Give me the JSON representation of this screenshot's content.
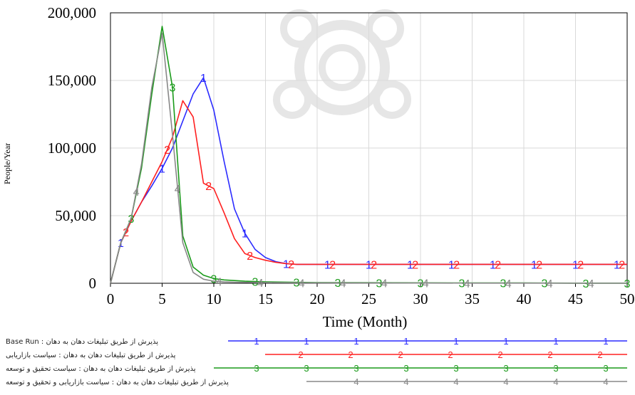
{
  "chart_data": {
    "type": "line",
    "title": "",
    "xlabel": "Time (Month)",
    "ylabel": "People/Year",
    "xlim": [
      0,
      50
    ],
    "ylim": [
      0,
      200000
    ],
    "x_ticks": [
      "0",
      "5",
      "10",
      "15",
      "20",
      "25",
      "30",
      "35",
      "40",
      "45",
      "50"
    ],
    "y_ticks": [
      "0",
      "50,000",
      "100,000",
      "150,000",
      "200,000"
    ],
    "grid": true,
    "legend_position": "bottom",
    "series": [
      {
        "marker": "1",
        "color": "#2b2bff",
        "legend_label": "پذیرش از طریق تبلیغات دهان به دهان : Base Run",
        "points": [
          [
            0,
            0
          ],
          [
            1,
            30000
          ],
          [
            2,
            46000
          ],
          [
            3,
            60000
          ],
          [
            4,
            72000
          ],
          [
            5,
            85000
          ],
          [
            6,
            100000
          ],
          [
            7,
            120000
          ],
          [
            8,
            140000
          ],
          [
            9,
            152000
          ],
          [
            10,
            128000
          ],
          [
            11,
            90000
          ],
          [
            12,
            55000
          ],
          [
            13,
            37000
          ],
          [
            14,
            25000
          ],
          [
            15,
            19000
          ],
          [
            16,
            16000
          ],
          [
            17,
            14500
          ],
          [
            18,
            14000
          ],
          [
            20,
            14000
          ],
          [
            25,
            14000
          ],
          [
            30,
            14000
          ],
          [
            35,
            14000
          ],
          [
            40,
            14000
          ],
          [
            45,
            14000
          ],
          [
            50,
            14000
          ]
        ]
      },
      {
        "marker": "2",
        "color": "#ff2020",
        "legend_label": "پذیرش از طریق تبلیغات دهان به دهان : سیاست بازاریابی",
        "points": [
          [
            0,
            0
          ],
          [
            1,
            30000
          ],
          [
            2,
            46000
          ],
          [
            3,
            60000
          ],
          [
            4,
            75000
          ],
          [
            5,
            90000
          ],
          [
            6,
            108000
          ],
          [
            7,
            135000
          ],
          [
            8,
            123000
          ],
          [
            9,
            74000
          ],
          [
            10,
            70000
          ],
          [
            11,
            52000
          ],
          [
            12,
            33000
          ],
          [
            13,
            22000
          ],
          [
            14,
            19000
          ],
          [
            15,
            17000
          ],
          [
            16,
            15500
          ],
          [
            17,
            14500
          ],
          [
            18,
            14000
          ],
          [
            20,
            14000
          ],
          [
            25,
            14000
          ],
          [
            30,
            14000
          ],
          [
            35,
            14000
          ],
          [
            40,
            14000
          ],
          [
            45,
            14000
          ],
          [
            50,
            14000
          ]
        ]
      },
      {
        "marker": "3",
        "color": "#1a9a1a",
        "legend_label": "پذیرش از طریق تبلیغات دهان به دهان : سیاست تحقیق و توسعه",
        "points": [
          [
            0,
            0
          ],
          [
            1,
            30000
          ],
          [
            2,
            48000
          ],
          [
            3,
            85000
          ],
          [
            4,
            140000
          ],
          [
            5,
            190000
          ],
          [
            6,
            145000
          ],
          [
            7,
            35000
          ],
          [
            8,
            12000
          ],
          [
            9,
            6000
          ],
          [
            10,
            3500
          ],
          [
            11,
            2500
          ],
          [
            12,
            2000
          ],
          [
            13,
            1500
          ],
          [
            15,
            1000
          ],
          [
            20,
            500
          ],
          [
            25,
            400
          ],
          [
            30,
            300
          ],
          [
            35,
            200
          ],
          [
            40,
            200
          ],
          [
            45,
            100
          ],
          [
            50,
            100
          ]
        ]
      },
      {
        "marker": "4",
        "color": "#888888",
        "legend_label": "پذیرش از طریق تبلیغات دهان به دهان : سیاست بازاریابی و تحقیق و توسعه",
        "points": [
          [
            0,
            0
          ],
          [
            1,
            30000
          ],
          [
            2,
            48000
          ],
          [
            3,
            88000
          ],
          [
            4,
            145000
          ],
          [
            5,
            185000
          ],
          [
            6,
            110000
          ],
          [
            7,
            30000
          ],
          [
            8,
            8000
          ],
          [
            9,
            3000
          ],
          [
            10,
            1500
          ],
          [
            11,
            1000
          ],
          [
            12,
            800
          ],
          [
            15,
            500
          ],
          [
            20,
            300
          ],
          [
            25,
            200
          ],
          [
            30,
            150
          ],
          [
            35,
            100
          ],
          [
            40,
            100
          ],
          [
            45,
            50
          ],
          [
            50,
            50
          ]
        ]
      }
    ]
  }
}
